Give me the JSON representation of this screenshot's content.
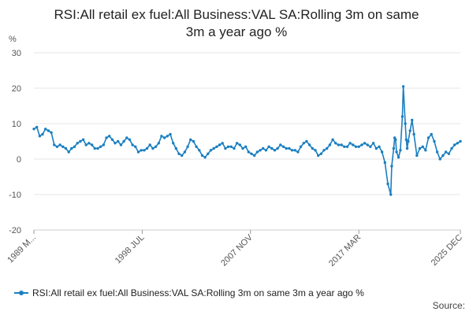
{
  "title_line1": "RSI:All retail ex fuel:All Business:VAL SA:Rolling 3m on same",
  "title_line2": "3m a year ago %",
  "unit_label": "%",
  "legend_label": "RSI:All retail ex fuel:All Business:VAL SA:Rolling 3m on same 3m a year ago %",
  "source_label": "Source:",
  "series_color": "#1a7fc0",
  "chart_data": {
    "type": "line",
    "title": "RSI:All retail ex fuel:All Business:VAL SA:Rolling 3m on same 3m a year ago %",
    "ylabel": "%",
    "xlabel": "",
    "ylim": [
      -20,
      30
    ],
    "yticks": [
      -20,
      -10,
      0,
      10,
      20,
      30
    ],
    "xlim": [
      "1989-03",
      "2025-12"
    ],
    "xticks": [
      {
        "date": "1989-03",
        "label": "1989 M..."
      },
      {
        "date": "1998-07",
        "label": "1998 JUL"
      },
      {
        "date": "2007-11",
        "label": "2007 NOV"
      },
      {
        "date": "2017-03",
        "label": "2017 MAR"
      },
      {
        "date": "2025-12",
        "label": "2025 DEC"
      }
    ],
    "grid": true,
    "legend": "bottom",
    "series": [
      {
        "name": "RSI:All retail ex fuel:All Business:VAL SA:Rolling 3m on same 3m a year ago %",
        "x": [
          "1989-03",
          "1989-06",
          "1989-09",
          "1989-12",
          "1990-03",
          "1990-06",
          "1990-09",
          "1990-12",
          "1991-03",
          "1991-06",
          "1991-09",
          "1991-12",
          "1992-03",
          "1992-06",
          "1992-09",
          "1992-12",
          "1993-03",
          "1993-06",
          "1993-09",
          "1993-12",
          "1994-03",
          "1994-06",
          "1994-09",
          "1994-12",
          "1995-03",
          "1995-06",
          "1995-09",
          "1995-12",
          "1996-03",
          "1996-06",
          "1996-09",
          "1996-12",
          "1997-03",
          "1997-06",
          "1997-09",
          "1997-12",
          "1998-03",
          "1998-06",
          "1998-09",
          "1998-12",
          "1999-03",
          "1999-06",
          "1999-09",
          "1999-12",
          "2000-03",
          "2000-06",
          "2000-09",
          "2000-12",
          "2001-03",
          "2001-06",
          "2001-09",
          "2001-12",
          "2002-03",
          "2002-06",
          "2002-09",
          "2002-12",
          "2003-03",
          "2003-06",
          "2003-09",
          "2003-12",
          "2004-03",
          "2004-06",
          "2004-09",
          "2004-12",
          "2005-03",
          "2005-06",
          "2005-09",
          "2005-12",
          "2006-03",
          "2006-06",
          "2006-09",
          "2006-12",
          "2007-03",
          "2007-06",
          "2007-09",
          "2007-12",
          "2008-03",
          "2008-06",
          "2008-09",
          "2008-12",
          "2009-03",
          "2009-06",
          "2009-09",
          "2009-12",
          "2010-03",
          "2010-06",
          "2010-09",
          "2010-12",
          "2011-03",
          "2011-06",
          "2011-09",
          "2011-12",
          "2012-03",
          "2012-06",
          "2012-09",
          "2012-12",
          "2013-03",
          "2013-06",
          "2013-09",
          "2013-12",
          "2014-03",
          "2014-06",
          "2014-09",
          "2014-12",
          "2015-03",
          "2015-06",
          "2015-09",
          "2015-12",
          "2016-03",
          "2016-06",
          "2016-09",
          "2016-12",
          "2017-03",
          "2017-06",
          "2017-09",
          "2017-12",
          "2018-03",
          "2018-06",
          "2018-09",
          "2018-12",
          "2019-03",
          "2019-06",
          "2019-09",
          "2019-12",
          "2020-01",
          "2020-03",
          "2020-04",
          "2020-05",
          "2020-06",
          "2020-08",
          "2020-10",
          "2020-12",
          "2021-01",
          "2021-03",
          "2021-04",
          "2021-05",
          "2021-06",
          "2021-08",
          "2021-10",
          "2021-12",
          "2022-03",
          "2022-06",
          "2022-09",
          "2022-12",
          "2023-03",
          "2023-06",
          "2023-09",
          "2023-12",
          "2024-03",
          "2024-06",
          "2024-09",
          "2024-12",
          "2025-03",
          "2025-06",
          "2025-09",
          "2025-12"
        ],
        "y": [
          8.5,
          9.0,
          6.5,
          7.0,
          8.5,
          8.0,
          7.5,
          4.0,
          3.5,
          4.0,
          3.5,
          3.0,
          2.0,
          3.0,
          3.5,
          4.5,
          5.0,
          5.5,
          4.0,
          4.5,
          4.0,
          3.0,
          3.0,
          3.5,
          4.0,
          6.0,
          6.5,
          5.5,
          4.5,
          5.0,
          4.0,
          5.0,
          6.0,
          5.5,
          4.0,
          3.5,
          2.0,
          2.5,
          2.5,
          3.0,
          4.0,
          3.0,
          3.5,
          4.5,
          6.5,
          6.0,
          6.5,
          7.0,
          4.5,
          3.0,
          1.5,
          1.0,
          2.0,
          3.5,
          5.5,
          5.0,
          3.5,
          2.5,
          1.0,
          0.5,
          1.5,
          2.5,
          3.0,
          3.5,
          4.0,
          4.5,
          3.0,
          3.5,
          3.5,
          3.0,
          4.5,
          4.0,
          3.0,
          3.5,
          2.0,
          1.5,
          1.0,
          2.0,
          2.5,
          3.0,
          2.5,
          3.5,
          3.0,
          2.5,
          3.0,
          4.0,
          3.5,
          3.0,
          3.0,
          2.5,
          2.5,
          2.0,
          3.5,
          4.5,
          5.0,
          4.0,
          3.0,
          2.5,
          1.0,
          1.5,
          2.5,
          3.0,
          4.0,
          5.5,
          4.5,
          4.0,
          4.0,
          3.5,
          3.5,
          4.5,
          4.0,
          3.5,
          3.5,
          4.0,
          4.5,
          4.0,
          3.5,
          4.5,
          3.0,
          3.5,
          2.0,
          -1.0,
          -7.0,
          -10.0,
          -2.0,
          3.0,
          6.0,
          5.5,
          2.0,
          0.5,
          2.5,
          12.0,
          20.5,
          10.0,
          5.5,
          3.0,
          5.0,
          8.0,
          11.0,
          7.0,
          1.0,
          3.0,
          3.5,
          2.5,
          6.0,
          7.0,
          5.0,
          2.0,
          0.0,
          1.0,
          2.0,
          1.5,
          3.0,
          4.0,
          4.5,
          5.0
        ]
      }
    ]
  }
}
